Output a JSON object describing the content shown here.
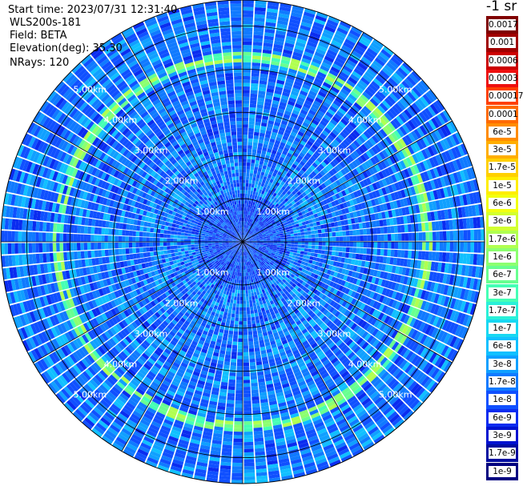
{
  "header": {
    "start_time": "Start time: 2023/07/31 12:31:40",
    "instrument": "WLS200s-181",
    "field": "Field: BETA",
    "elevation": "Elevation(deg): 35.30",
    "nrays": "NRays: 120"
  },
  "unit_label": "-1 sr",
  "chart_data": {
    "type": "heatmap",
    "projection": "polar PPI",
    "field": "BETA",
    "elevation_deg": 35.3,
    "n_rays": 120,
    "max_range_km": 5.6,
    "range_rings_km": [
      1,
      2,
      3,
      4,
      5
    ],
    "ring_labels": [
      "1.00km",
      "2.00km",
      "3.00km",
      "4.00km",
      "5.00km"
    ],
    "spokes_deg": 30,
    "aerosol_ring_radius_km": 4.3,
    "scale": "log",
    "colorbar": {
      "labels": [
        "0.0017",
        "0.001",
        "0.0006",
        "0.0003",
        "0.00017",
        "0.0001",
        "6e-5",
        "3e-5",
        "1.7e-5",
        "1e-5",
        "6e-6",
        "3e-6",
        "1.7e-6",
        "1e-6",
        "6e-7",
        "3e-7",
        "1.7e-7",
        "1e-7",
        "6e-8",
        "3e-8",
        "1.7e-8",
        "1e-8",
        "6e-9",
        "3e-9",
        "1.7e-9",
        "1e-9"
      ],
      "colors": [
        "#800000",
        "#a00000",
        "#cc0000",
        "#ee1010",
        "#ff4000",
        "#ff6a00",
        "#ff8c00",
        "#ffae00",
        "#ffd000",
        "#ffee00",
        "#f2ff10",
        "#d2ff30",
        "#b0ff50",
        "#8cff70",
        "#68ff90",
        "#45ffb5",
        "#2af0d8",
        "#18d8f2",
        "#10c0ff",
        "#10a0ff",
        "#107aff",
        "#1050ff",
        "#0a2cf0",
        "#0012d0",
        "#000ca0",
        "#000080"
      ]
    }
  }
}
